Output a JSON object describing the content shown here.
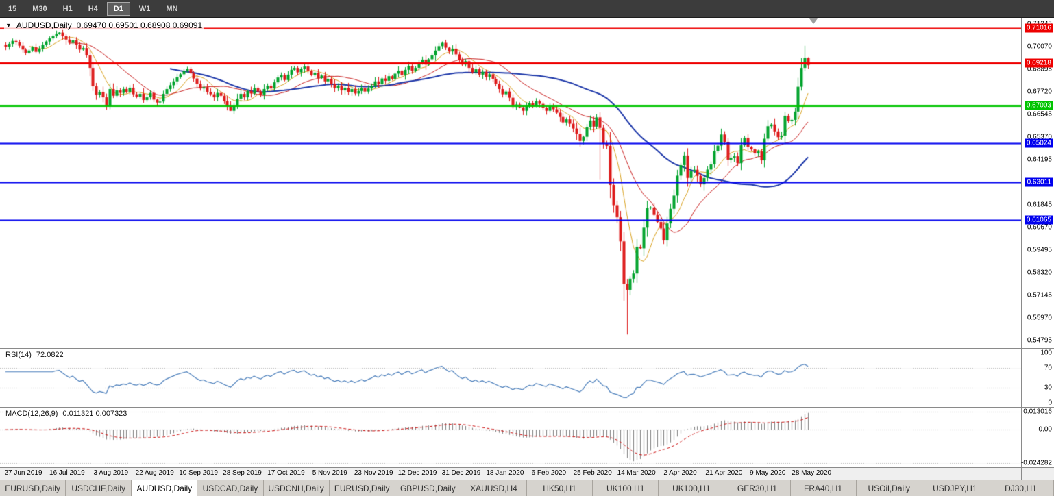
{
  "toolbar": {
    "timeframes": [
      "15",
      "M30",
      "H1",
      "H4",
      "D1",
      "W1",
      "MN"
    ],
    "active_timeframe": "D1"
  },
  "icons": {
    "title_marker": "▼"
  },
  "chart": {
    "symbol_label": "AUDUSD,Daily",
    "ohlc_label": "0.69470 0.69501 0.68908 0.69091"
  },
  "price_axis": {
    "ticks": [
      "0.71245",
      "0.70070",
      "0.68895",
      "0.67720",
      "0.66545",
      "0.65370",
      "0.64195",
      "0.63020",
      "0.61845",
      "0.60670",
      "0.59495",
      "0.58320",
      "0.57145",
      "0.55970",
      "0.54795"
    ]
  },
  "levels": [
    {
      "value": 0.71016,
      "label": "0.71016",
      "color": "#ee0000",
      "width": 2
    },
    {
      "value": 0.69218,
      "label": "0.69218",
      "color": "#ee0000",
      "width": 3
    },
    {
      "value": 0.67003,
      "label": "0.67003",
      "color": "#00c400",
      "width": 3
    },
    {
      "value": 0.65024,
      "label": "0.65024",
      "color": "#0000ee",
      "width": 2
    },
    {
      "value": 0.63011,
      "label": "0.63011",
      "color": "#0000ee",
      "width": 2
    },
    {
      "value": 0.61065,
      "label": "0.61065",
      "color": "#0000ee",
      "width": 2
    }
  ],
  "rsi": {
    "label": "RSI(14)",
    "value": "72.0822",
    "axis_labels": [
      "100",
      "70",
      "30",
      "0"
    ],
    "axis_values": [
      100,
      70,
      30,
      0
    ],
    "guide_levels": [
      70,
      30
    ],
    "color": "#4a7ebb"
  },
  "macd": {
    "label": "MACD(12,26,9)",
    "value": "0.011321 0.007323",
    "axis_max_label": "0.013016",
    "axis_zero_label": "0.00",
    "axis_min_label": "-0.024282",
    "axis_max": 0.013016,
    "axis_min": -0.024282,
    "bar_color": "#7f7f7f",
    "signal_color": "#cc1111"
  },
  "date_axis": [
    "27 Jun 2019",
    "16 Jul 2019",
    "3 Aug 2019",
    "22 Aug 2019",
    "10 Sep 2019",
    "28 Sep 2019",
    "17 Oct 2019",
    "5 Nov 2019",
    "23 Nov 2019",
    "12 Dec 2019",
    "31 Dec 2019",
    "18 Jan 2020",
    "6 Feb 2020",
    "25 Feb 2020",
    "14 Mar 2020",
    "2 Apr 2020",
    "21 Apr 2020",
    "9 May 2020",
    "28 May 2020"
  ],
  "tabs": {
    "items": [
      "EURUSD,Daily",
      "USDCHF,Daily",
      "AUDUSD,Daily",
      "USDCAD,Daily",
      "USDCNH,Daily",
      "EURUSD,Daily",
      "GBPUSD,Daily",
      "XAUUSD,H4",
      "HK50,H1",
      "UK100,H1",
      "UK100,H1",
      "GER30,H1",
      "FRA40,H1",
      "USOil,Daily",
      "USDJPY,H1",
      "DJ30,H1"
    ],
    "active_index": 2
  },
  "chart_data": {
    "type": "candlestick",
    "title": "AUDUSD,Daily",
    "symbol": "AUDUSD",
    "timeframe": "Daily",
    "last_bar": {
      "open": 0.6947,
      "high": 0.69501,
      "low": 0.68908,
      "close": 0.69091
    },
    "y_range": [
      0.544,
      0.7155
    ],
    "first_open": 0.7015,
    "x_step": 4.9,
    "x_offset": 8,
    "up_color": "#00a32c",
    "down_color": "#dd1a1a",
    "closes": [
      0.7005,
      0.702,
      0.7035,
      0.7028,
      0.701,
      0.699,
      0.6972,
      0.6985,
      0.7002,
      0.6978,
      0.6995,
      0.7015,
      0.7032,
      0.7048,
      0.706,
      0.7072,
      0.7078,
      0.706,
      0.7042,
      0.7025,
      0.7038,
      0.7015,
      0.699,
      0.6998,
      0.696,
      0.6895,
      0.68,
      0.6755,
      0.677,
      0.6742,
      0.67,
      0.6785,
      0.675,
      0.6778,
      0.6765,
      0.6785,
      0.677,
      0.6792,
      0.6758,
      0.6745,
      0.676,
      0.6728,
      0.6742,
      0.6765,
      0.673,
      0.6715,
      0.672,
      0.676,
      0.6785,
      0.6805,
      0.6825,
      0.6847,
      0.6862,
      0.6878,
      0.689,
      0.6868,
      0.684,
      0.6812,
      0.6788,
      0.6795,
      0.677,
      0.6758,
      0.6742,
      0.6765,
      0.675,
      0.6722,
      0.6698,
      0.6672,
      0.67,
      0.6735,
      0.676,
      0.6742,
      0.6775,
      0.6762,
      0.679,
      0.6772,
      0.6755,
      0.6785,
      0.6802,
      0.6788,
      0.682,
      0.6845,
      0.6858,
      0.6832,
      0.686,
      0.6885,
      0.6895,
      0.6872,
      0.689,
      0.6902,
      0.688,
      0.6858,
      0.687,
      0.6842,
      0.6855,
      0.6825,
      0.6838,
      0.6812,
      0.679,
      0.6802,
      0.6778,
      0.6792,
      0.677,
      0.6785,
      0.6762,
      0.6775,
      0.679,
      0.6772,
      0.6788,
      0.6802,
      0.6825,
      0.681,
      0.684,
      0.6828,
      0.6852,
      0.6838,
      0.6865,
      0.688,
      0.6858,
      0.6885,
      0.6905,
      0.688,
      0.6895,
      0.692,
      0.6938,
      0.6912,
      0.694,
      0.696,
      0.6985,
      0.7008,
      0.7025,
      0.7,
      0.698,
      0.6995,
      0.6965,
      0.6935,
      0.6912,
      0.693,
      0.6895,
      0.6872,
      0.6888,
      0.686,
      0.6875,
      0.6848,
      0.6862,
      0.6838,
      0.6812,
      0.6785,
      0.6758,
      0.6772,
      0.674,
      0.6692,
      0.6705,
      0.669,
      0.6672,
      0.6695,
      0.6712,
      0.6698,
      0.6722,
      0.6708,
      0.6688,
      0.6672,
      0.6695,
      0.668,
      0.6662,
      0.664,
      0.6612,
      0.6628,
      0.6605,
      0.658,
      0.6552,
      0.6515,
      0.6537,
      0.6587,
      0.6622,
      0.659,
      0.6638,
      0.6583,
      0.6503,
      0.649,
      0.6287,
      0.6182,
      0.6119,
      0.5994,
      0.5773,
      0.5742,
      0.58,
      0.5827,
      0.5966,
      0.5958,
      0.6065,
      0.6167,
      0.617,
      0.6131,
      0.6095,
      0.6061,
      0.5999,
      0.6087,
      0.6163,
      0.6232,
      0.6335,
      0.639,
      0.644,
      0.6323,
      0.6361,
      0.6366,
      0.6334,
      0.629,
      0.6323,
      0.6367,
      0.6394,
      0.6463,
      0.6491,
      0.6549,
      0.651,
      0.6418,
      0.6428,
      0.6436,
      0.64,
      0.6493,
      0.6531,
      0.6485,
      0.6472,
      0.6451,
      0.6461,
      0.6415,
      0.6527,
      0.6592,
      0.6601,
      0.6565,
      0.6535,
      0.6543,
      0.6646,
      0.6618,
      0.6625,
      0.6668,
      0.6797,
      0.6895,
      0.6947,
      0.6909
    ],
    "wick_overrides": {
      "16": {
        "h": 0.7082
      },
      "30": {
        "l": 0.6677
      },
      "67": {
        "l": 0.6671
      },
      "130": {
        "h": 0.7032
      },
      "177": {
        "l": 0.6313
      },
      "184": {
        "l": 0.5685
      },
      "185": {
        "l": 0.551
      },
      "238": {
        "h": 0.701
      },
      "239": {
        "h": 0.69501,
        "l": 0.68908
      }
    },
    "moving_averages": [
      {
        "period": 8,
        "color": "#d8a01d",
        "width": 1
      },
      {
        "period": 20,
        "color": "#c81e1e",
        "width": 1
      },
      {
        "period": 50,
        "color": "#1a35a8",
        "width": 2
      }
    ]
  }
}
